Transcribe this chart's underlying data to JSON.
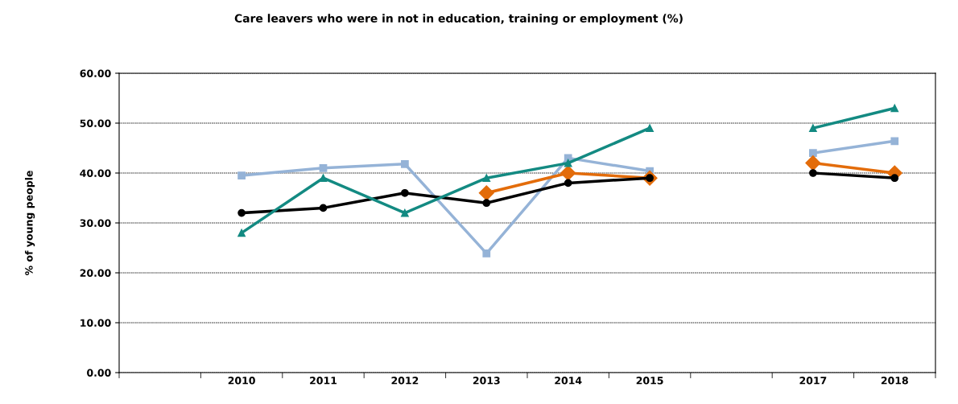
{
  "chart_data": {
    "type": "line",
    "title": "Care leavers who were in not in education, training or employment (%)",
    "ylabel": "% of young people",
    "categories": [
      null,
      "2010",
      "2011",
      "2012",
      "2013",
      "2014",
      "2015",
      null,
      "2017",
      "2018"
    ],
    "ylim": [
      0,
      60
    ],
    "yticks": [
      {
        "value": 0,
        "label": "0.00"
      },
      {
        "value": 10,
        "label": "10.00"
      },
      {
        "value": 20,
        "label": "20.00"
      },
      {
        "value": 30,
        "label": "30.00"
      },
      {
        "value": 40,
        "label": "40.00"
      },
      {
        "value": 50,
        "label": "50.00"
      },
      {
        "value": 60,
        "label": "60.00"
      }
    ],
    "grid": "y",
    "line_style": "solid",
    "series": [
      {
        "color": "#95b3d7",
        "marker": "square",
        "values": [
          null,
          39.5,
          41,
          41.8,
          23.9,
          43,
          40.4,
          null,
          44,
          46.4
        ]
      },
      {
        "color": "#e36c0a",
        "marker": "diamond",
        "values": [
          null,
          null,
          null,
          null,
          36,
          40,
          39,
          null,
          42,
          40
        ]
      },
      {
        "color": "#000000",
        "marker": "circle",
        "values": [
          null,
          32,
          33,
          36,
          34,
          38,
          39,
          null,
          40,
          39
        ]
      },
      {
        "color": "#138a82",
        "marker": "triangle",
        "values": [
          null,
          28,
          39,
          32,
          39,
          42,
          49,
          null,
          49,
          53
        ]
      }
    ]
  }
}
